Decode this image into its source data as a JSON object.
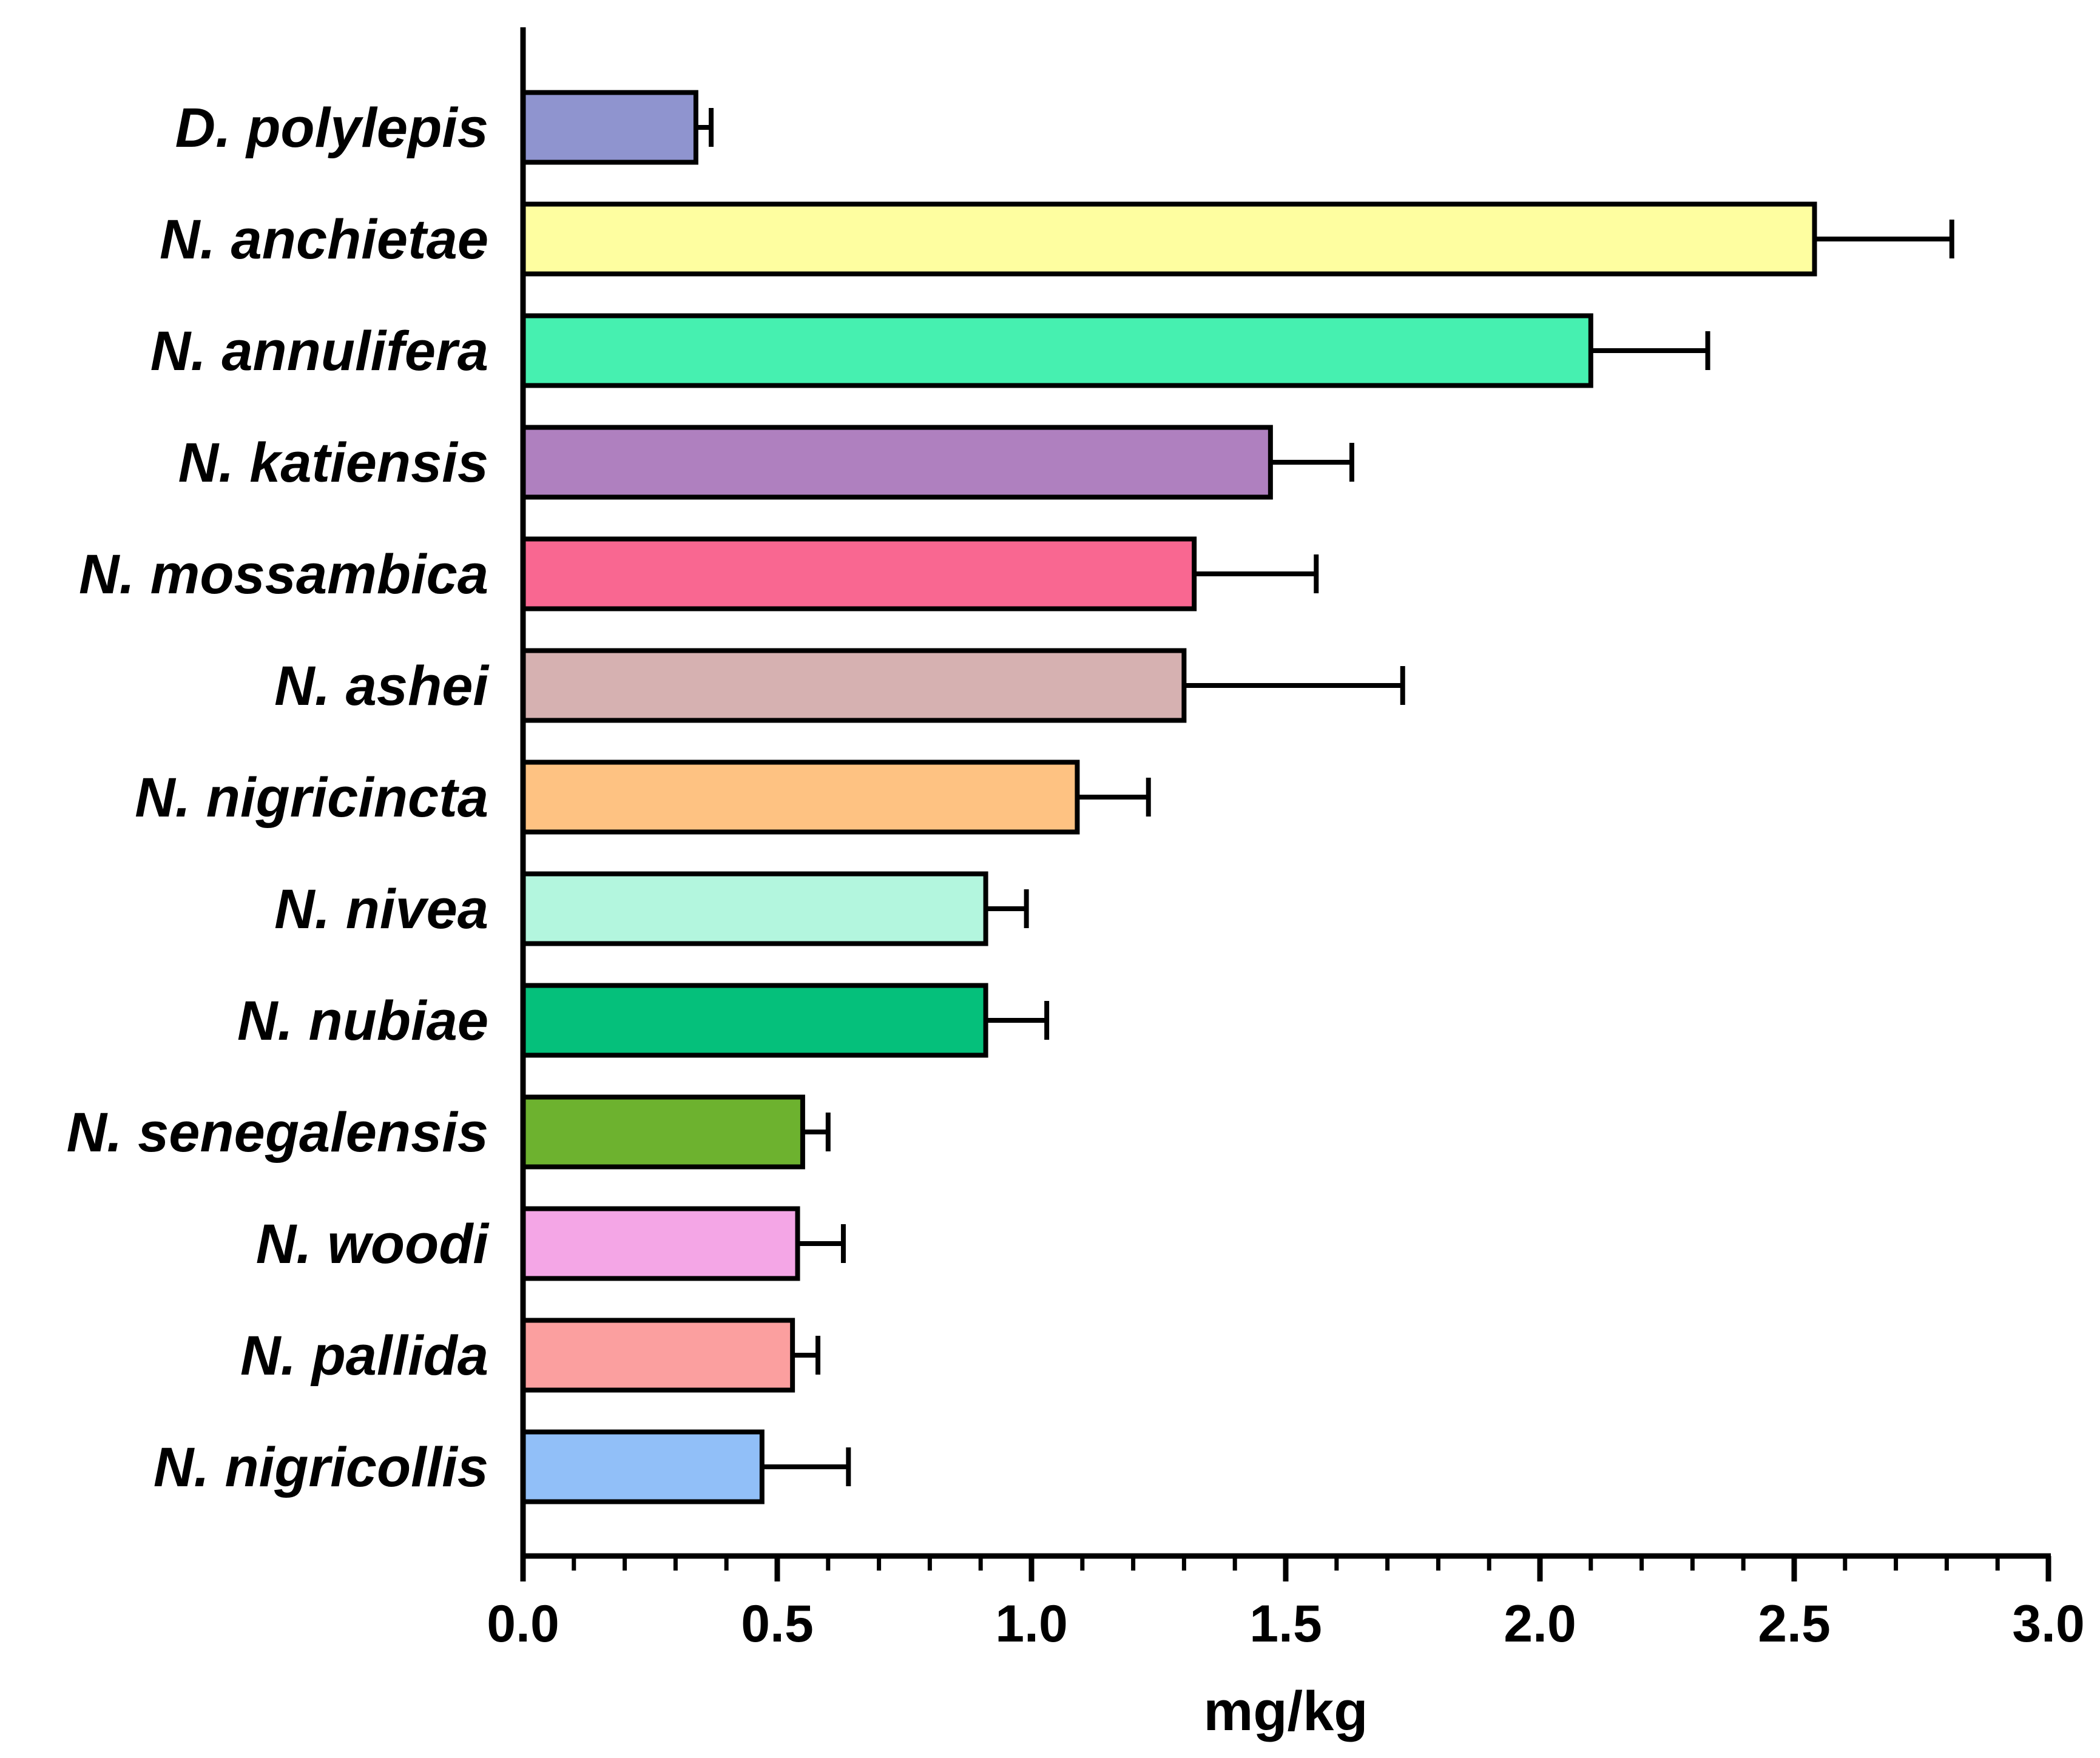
{
  "chart_data": {
    "type": "bar",
    "orientation": "horizontal",
    "title": "",
    "xlabel": "mg/kg",
    "ylabel": "",
    "xlim": [
      0,
      3.0
    ],
    "x_ticks": [
      "0.0",
      "0.5",
      "1.0",
      "1.5",
      "2.0",
      "2.5",
      "3.0"
    ],
    "grid": false,
    "categories": [
      "D. polylepis",
      "N. anchietae",
      "N. annulifera",
      "N. katiensis",
      "N. mossambica",
      "N. ashei",
      "N. nigricincta",
      "N. nivea",
      "N. nubiae",
      "N. senegalensis",
      "N. woodi",
      "N. pallida",
      "N. nigricollis"
    ],
    "values": [
      0.34,
      2.54,
      2.1,
      1.47,
      1.32,
      1.3,
      1.09,
      0.91,
      0.91,
      0.55,
      0.54,
      0.53,
      0.47
    ],
    "errors": [
      0.03,
      0.27,
      0.23,
      0.16,
      0.24,
      0.43,
      0.14,
      0.08,
      0.12,
      0.05,
      0.09,
      0.05,
      0.17
    ],
    "colors": [
      "#8f94cf",
      "#fefea0",
      "#46f0b0",
      "#af80bf",
      "#f96791",
      "#d6b1b1",
      "#fec282",
      "#b3f6de",
      "#05c07b",
      "#6db22f",
      "#f4a6e6",
      "#fb9f9f",
      "#91bff8"
    ]
  }
}
